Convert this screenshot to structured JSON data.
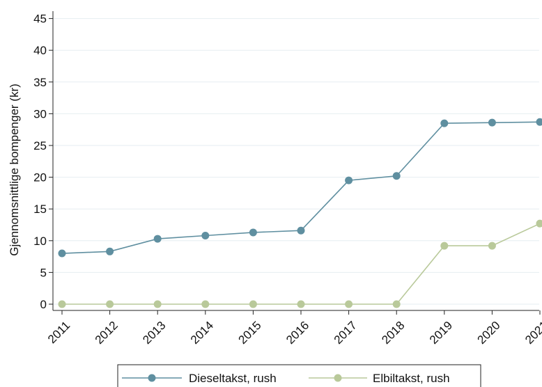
{
  "chart_data": {
    "type": "line",
    "title": "",
    "xlabel": "",
    "ylabel": "Gjennomsnittlige bompenger (kr)",
    "x": [
      "2011",
      "2012",
      "2013",
      "2014",
      "2015",
      "2016",
      "2017",
      "2018",
      "2019",
      "2020",
      "2021"
    ],
    "ylim": [
      0,
      45
    ],
    "yticks": [
      0,
      5,
      10,
      15,
      20,
      25,
      30,
      35,
      40,
      45
    ],
    "grid": true,
    "legend_position": "bottom",
    "series": [
      {
        "name": "Dieseltakst, rush",
        "color": "#5f8fa0",
        "values": [
          8.0,
          8.3,
          10.3,
          10.8,
          11.3,
          11.6,
          19.5,
          20.2,
          28.5,
          28.6,
          28.7
        ]
      },
      {
        "name": "Elbiltakst, rush",
        "color": "#b9c99a",
        "values": [
          0,
          0,
          0,
          0,
          0,
          0,
          0,
          0,
          9.2,
          9.2,
          12.7
        ]
      }
    ]
  }
}
